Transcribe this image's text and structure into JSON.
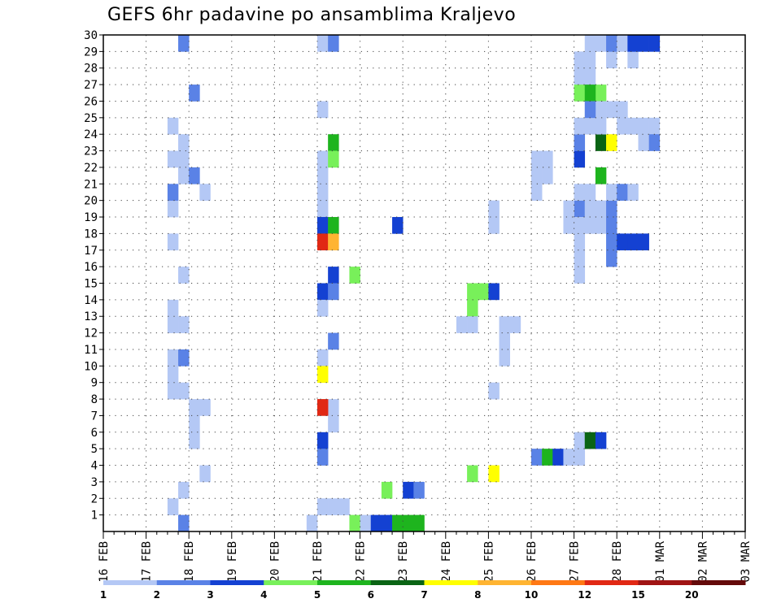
{
  "chart_data": {
    "type": "heatmap",
    "title": "GEFS 6hr padavine po ansamblima Kraljevo",
    "xlabel": "",
    "ylabel": "",
    "x_tick_labels": [
      "16 FEB",
      "17 FEB",
      "18 FEB",
      "19 FEB",
      "20 FEB",
      "21 FEB",
      "22 FEB",
      "23 FEB",
      "24 FEB",
      "25 FEB",
      "26 FEB",
      "27 FEB",
      "28 FEB",
      "01 MAR",
      "02 MAR",
      "03 MAR"
    ],
    "x_unit": "6-hour steps from 16 FEB 00Z",
    "x_range": [
      0,
      60
    ],
    "y_tick_labels": [
      "1",
      "2",
      "3",
      "4",
      "5",
      "6",
      "7",
      "8",
      "9",
      "10",
      "11",
      "12",
      "13",
      "14",
      "15",
      "16",
      "17",
      "18",
      "19",
      "20",
      "21",
      "22",
      "23",
      "24",
      "25",
      "26",
      "27",
      "28",
      "29",
      "30"
    ],
    "y_range": [
      0,
      30
    ],
    "grid": true,
    "legend": {
      "placement": "bottom",
      "labels": [
        "1",
        "2",
        "3",
        "4",
        "5",
        "6",
        "7",
        "8",
        "10",
        "12",
        "15",
        "20"
      ],
      "colors": [
        "#b4c8f5",
        "#5a82e6",
        "#1441d2",
        "#78f05a",
        "#1eb41e",
        "#0a6414",
        "#ffff00",
        "#ffb432",
        "#ff7814",
        "#e12814",
        "#a01414",
        "#640a0a"
      ]
    },
    "cells": [
      [
        7,
        0,
        2
      ],
      [
        19,
        0,
        1
      ],
      [
        23,
        0,
        4
      ],
      [
        24,
        0,
        1
      ],
      [
        25,
        0,
        3
      ],
      [
        26,
        0,
        3
      ],
      [
        27,
        0,
        5
      ],
      [
        28,
        0,
        5
      ],
      [
        29,
        0,
        5
      ],
      [
        20,
        1,
        1
      ],
      [
        21,
        1,
        1
      ],
      [
        22,
        1,
        1
      ],
      [
        26,
        2,
        4
      ],
      [
        28,
        2,
        3
      ],
      [
        29,
        2,
        2
      ],
      [
        34,
        3,
        4
      ],
      [
        36,
        3,
        7
      ],
      [
        40,
        4,
        2
      ],
      [
        41,
        4,
        5
      ],
      [
        42,
        4,
        3
      ],
      [
        43,
        4,
        1
      ],
      [
        44,
        4,
        1
      ],
      [
        44,
        5,
        1
      ],
      [
        45,
        5,
        6
      ],
      [
        46,
        5,
        3
      ],
      [
        6,
        1,
        1
      ],
      [
        7,
        2,
        1
      ],
      [
        9,
        3,
        1
      ],
      [
        8,
        5,
        1
      ],
      [
        8,
        6,
        1
      ],
      [
        8,
        7,
        1
      ],
      [
        6,
        8,
        1
      ],
      [
        7,
        8,
        1
      ],
      [
        9,
        7,
        1
      ],
      [
        6,
        9,
        1
      ],
      [
        6,
        10,
        1
      ],
      [
        7,
        10,
        2
      ],
      [
        6,
        12,
        1
      ],
      [
        7,
        12,
        1
      ],
      [
        6,
        13,
        1
      ],
      [
        6,
        17,
        1
      ],
      [
        6,
        19,
        1
      ],
      [
        6,
        20,
        2
      ],
      [
        7,
        15,
        1
      ],
      [
        9,
        20,
        1
      ],
      [
        7,
        22,
        1
      ],
      [
        6,
        22,
        1
      ],
      [
        7,
        23,
        1
      ],
      [
        6,
        24,
        1
      ],
      [
        7,
        21,
        1
      ],
      [
        8,
        21,
        2
      ],
      [
        7,
        29,
        2
      ],
      [
        8,
        26,
        2
      ],
      [
        20,
        25,
        1
      ],
      [
        20,
        29,
        1
      ],
      [
        21,
        29,
        2
      ],
      [
        20,
        20,
        1
      ],
      [
        20,
        19,
        1
      ],
      [
        20,
        18,
        3
      ],
      [
        20,
        14,
        3
      ],
      [
        20,
        13,
        1
      ],
      [
        21,
        11,
        2
      ],
      [
        20,
        10,
        1
      ],
      [
        20,
        9,
        7
      ],
      [
        20,
        5,
        3
      ],
      [
        21,
        6,
        1
      ],
      [
        21,
        7,
        1
      ],
      [
        20,
        4,
        2
      ],
      [
        21,
        15,
        3
      ],
      [
        21,
        14,
        2
      ],
      [
        21,
        18,
        5
      ],
      [
        20,
        7,
        10
      ],
      [
        20,
        17,
        10
      ],
      [
        21,
        17,
        8
      ],
      [
        20,
        22,
        1
      ],
      [
        20,
        21,
        1
      ],
      [
        21,
        23,
        5
      ],
      [
        21,
        22,
        4
      ],
      [
        34,
        13,
        4
      ],
      [
        34,
        14,
        4
      ],
      [
        35,
        14,
        4
      ],
      [
        36,
        14,
        3
      ],
      [
        36,
        8,
        1
      ],
      [
        37,
        10,
        1
      ],
      [
        37,
        11,
        1
      ],
      [
        37,
        12,
        1
      ],
      [
        38,
        12,
        1
      ],
      [
        33,
        12,
        1
      ],
      [
        34,
        12,
        1
      ],
      [
        36,
        19,
        1
      ],
      [
        36,
        18,
        1
      ],
      [
        23,
        15,
        4
      ],
      [
        27,
        18,
        3
      ],
      [
        27,
        18,
        3
      ],
      [
        40,
        21,
        1
      ],
      [
        40,
        20,
        1
      ],
      [
        41,
        21,
        1
      ],
      [
        41,
        22,
        1
      ],
      [
        40,
        22,
        1
      ],
      [
        44,
        22,
        3
      ],
      [
        44,
        23,
        2
      ],
      [
        46,
        26,
        4
      ],
      [
        46,
        23,
        6
      ],
      [
        46,
        21,
        5
      ],
      [
        47,
        23,
        7
      ],
      [
        44,
        17,
        1
      ],
      [
        44,
        16,
        1
      ],
      [
        44,
        15,
        1
      ],
      [
        44,
        19,
        2
      ],
      [
        45,
        19,
        1
      ],
      [
        45,
        20,
        1
      ],
      [
        44,
        20,
        1
      ],
      [
        46,
        19,
        1
      ],
      [
        47,
        19,
        2
      ],
      [
        47,
        20,
        1
      ],
      [
        48,
        20,
        2
      ],
      [
        49,
        20,
        1
      ],
      [
        44,
        24,
        1
      ],
      [
        45,
        24,
        1
      ],
      [
        46,
        24,
        1
      ],
      [
        46,
        25,
        1
      ],
      [
        47,
        25,
        1
      ],
      [
        48,
        25,
        1
      ],
      [
        48,
        24,
        1
      ],
      [
        49,
        24,
        1
      ],
      [
        50,
        24,
        1
      ],
      [
        51,
        24,
        1
      ],
      [
        50,
        23,
        1
      ],
      [
        51,
        23,
        2
      ],
      [
        45,
        27,
        1
      ],
      [
        44,
        27,
        1
      ],
      [
        45,
        28,
        1
      ],
      [
        44,
        28,
        1
      ],
      [
        45,
        29,
        1
      ],
      [
        46,
        29,
        1
      ],
      [
        47,
        28,
        1
      ],
      [
        47,
        29,
        2
      ],
      [
        48,
        29,
        1
      ],
      [
        49,
        28,
        1
      ],
      [
        49,
        29,
        3
      ],
      [
        50,
        29,
        3
      ],
      [
        51,
        29,
        3
      ],
      [
        44,
        26,
        4
      ],
      [
        45,
        26,
        5
      ],
      [
        45,
        25,
        2
      ],
      [
        46,
        25,
        1
      ],
      [
        43,
        19,
        1
      ],
      [
        43,
        18,
        1
      ],
      [
        44,
        18,
        1
      ],
      [
        45,
        18,
        1
      ],
      [
        46,
        18,
        1
      ],
      [
        47,
        18,
        2
      ],
      [
        47,
        17,
        2
      ],
      [
        47,
        16,
        2
      ],
      [
        48,
        17,
        3
      ],
      [
        49,
        17,
        3
      ],
      [
        50,
        17,
        3
      ]
    ]
  }
}
